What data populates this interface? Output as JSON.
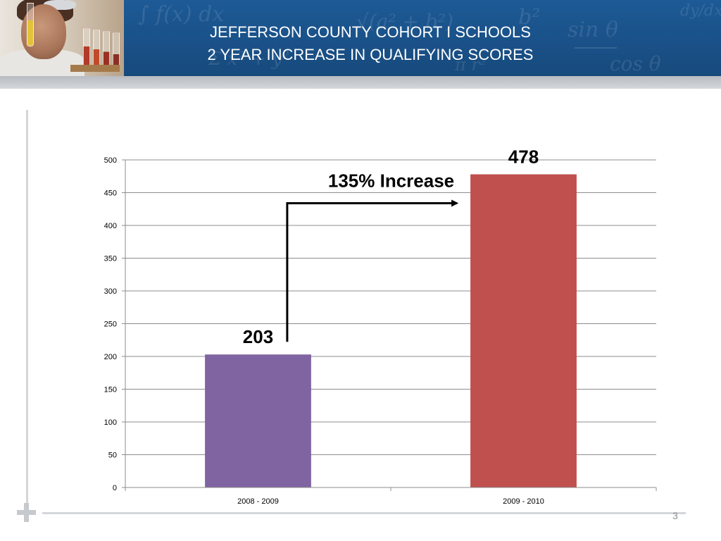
{
  "header": {
    "title_line1": "JEFFERSON COUNTY COHORT I SCHOOLS",
    "title_line2": "2 YEAR INCREASE IN QUALIFYING SCORES",
    "photo_icon": "scientist-with-test-tubes-photo",
    "background_math": "math-formula-watermark"
  },
  "footer": {
    "page_number": "3",
    "plus_icon": "plus-icon"
  },
  "colors": {
    "banner": "#1a5188",
    "bar_2008_2009": "#8064a2",
    "bar_2009_2010": "#c0504d"
  },
  "chart_data": {
    "type": "bar",
    "categories": [
      "2008 - 2009",
      "2009 - 2010"
    ],
    "values": [
      203,
      478
    ],
    "bar_colors": [
      "#8064a2",
      "#c0504d"
    ],
    "data_labels": [
      "203",
      "478"
    ],
    "ylim": [
      0,
      500
    ],
    "yticks": [
      0,
      50,
      100,
      150,
      200,
      250,
      300,
      350,
      400,
      450,
      500
    ],
    "grid": true,
    "legend": "none",
    "annotation": {
      "text": "135% Increase",
      "from_category": "2008 - 2009",
      "to_category": "2009 - 2010"
    }
  }
}
